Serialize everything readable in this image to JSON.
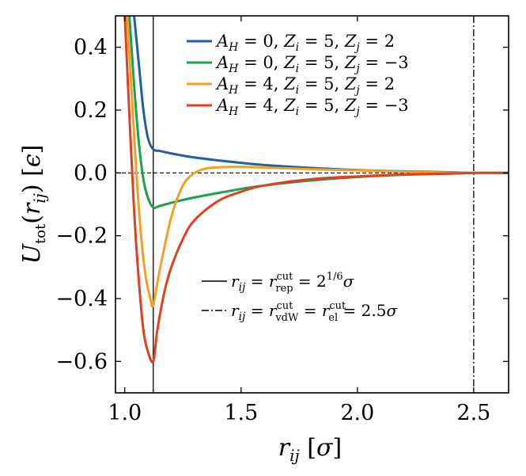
{
  "chart_data": {
    "type": "line",
    "xlabel": "r_ij [σ]",
    "ylabel": "U_tot(r_ij) [ϵ]",
    "xlim": [
      0.96,
      2.65
    ],
    "ylim": [
      -0.7,
      0.5
    ],
    "xticks": [
      1.0,
      1.5,
      2.0,
      2.5
    ],
    "xtick_labels": [
      "1.0",
      "1.5",
      "2.0",
      "2.5"
    ],
    "yticks": [
      -0.6,
      -0.4,
      -0.2,
      0.0,
      0.2,
      0.4
    ],
    "ytick_labels": [
      "−0.6",
      "−0.4",
      "−0.2",
      "0.0",
      "0.2",
      "0.4"
    ],
    "grid": false,
    "legend_position": "top-right",
    "series": [
      {
        "name": "A_H = 0, Z_i = 5, Z_j = 2",
        "color": "#1f5fa8",
        "x": [
          1.04,
          1.06,
          1.08,
          1.1,
          1.1225,
          1.15,
          1.2,
          1.25,
          1.3,
          1.4,
          1.5,
          1.6,
          1.8,
          2.0,
          2.2,
          2.4,
          2.5,
          2.65
        ],
        "y": [
          0.5,
          0.35,
          0.2,
          0.11,
          0.075,
          0.07,
          0.062,
          0.055,
          0.049,
          0.04,
          0.032,
          0.025,
          0.016,
          0.009,
          0.005,
          0.002,
          0.0,
          0.0
        ]
      },
      {
        "name": "A_H = 0, Z_i = 5, Z_j = −3",
        "color": "#1aa34a",
        "x": [
          1.02,
          1.04,
          1.06,
          1.08,
          1.1,
          1.1225,
          1.15,
          1.2,
          1.25,
          1.3,
          1.4,
          1.5,
          1.6,
          1.8,
          2.0,
          2.2,
          2.4,
          2.5,
          2.65
        ],
        "y": [
          0.5,
          0.28,
          0.1,
          -0.02,
          -0.08,
          -0.11,
          -0.105,
          -0.095,
          -0.086,
          -0.078,
          -0.064,
          -0.051,
          -0.04,
          -0.024,
          -0.013,
          -0.006,
          -0.002,
          0.0,
          0.0
        ]
      },
      {
        "name": "A_H = 4, Z_i = 5, Z_j = 2",
        "color": "#f2a025",
        "x": [
          1.01,
          1.03,
          1.05,
          1.07,
          1.09,
          1.11,
          1.1225,
          1.15,
          1.2,
          1.25,
          1.3,
          1.35,
          1.4,
          1.5,
          1.6,
          1.8,
          2.0,
          2.2,
          2.4,
          2.5,
          2.65
        ],
        "y": [
          0.5,
          0.25,
          0.0,
          -0.2,
          -0.33,
          -0.4,
          -0.42,
          -0.31,
          -0.14,
          -0.04,
          0.0,
          0.014,
          0.018,
          0.019,
          0.017,
          0.012,
          0.008,
          0.004,
          0.001,
          0.0,
          0.0
        ]
      },
      {
        "name": "A_H = 4, Z_i = 5, Z_j = −3",
        "color": "#e0401c",
        "x": [
          1.0,
          1.02,
          1.04,
          1.06,
          1.08,
          1.1,
          1.1225,
          1.14,
          1.17,
          1.2,
          1.25,
          1.3,
          1.4,
          1.5,
          1.6,
          1.8,
          2.0,
          2.2,
          2.4,
          2.5,
          2.65
        ],
        "y": [
          0.5,
          0.18,
          -0.12,
          -0.34,
          -0.5,
          -0.57,
          -0.6,
          -0.5,
          -0.38,
          -0.3,
          -0.21,
          -0.15,
          -0.09,
          -0.06,
          -0.04,
          -0.02,
          -0.011,
          -0.005,
          -0.002,
          0.0,
          0.0
        ]
      }
    ],
    "reference_lines": [
      {
        "type": "vertical",
        "x": 1.1225,
        "style": "solid",
        "label": "r_ij = r_rep^cut = 2^1/6 σ"
      },
      {
        "type": "vertical",
        "x": 2.5,
        "style": "dashdot",
        "label": "r_ij = r_vdW^cut = r_el^cut = 2.5σ"
      },
      {
        "type": "horizontal",
        "y": 0.0,
        "style": "dashed"
      }
    ]
  }
}
